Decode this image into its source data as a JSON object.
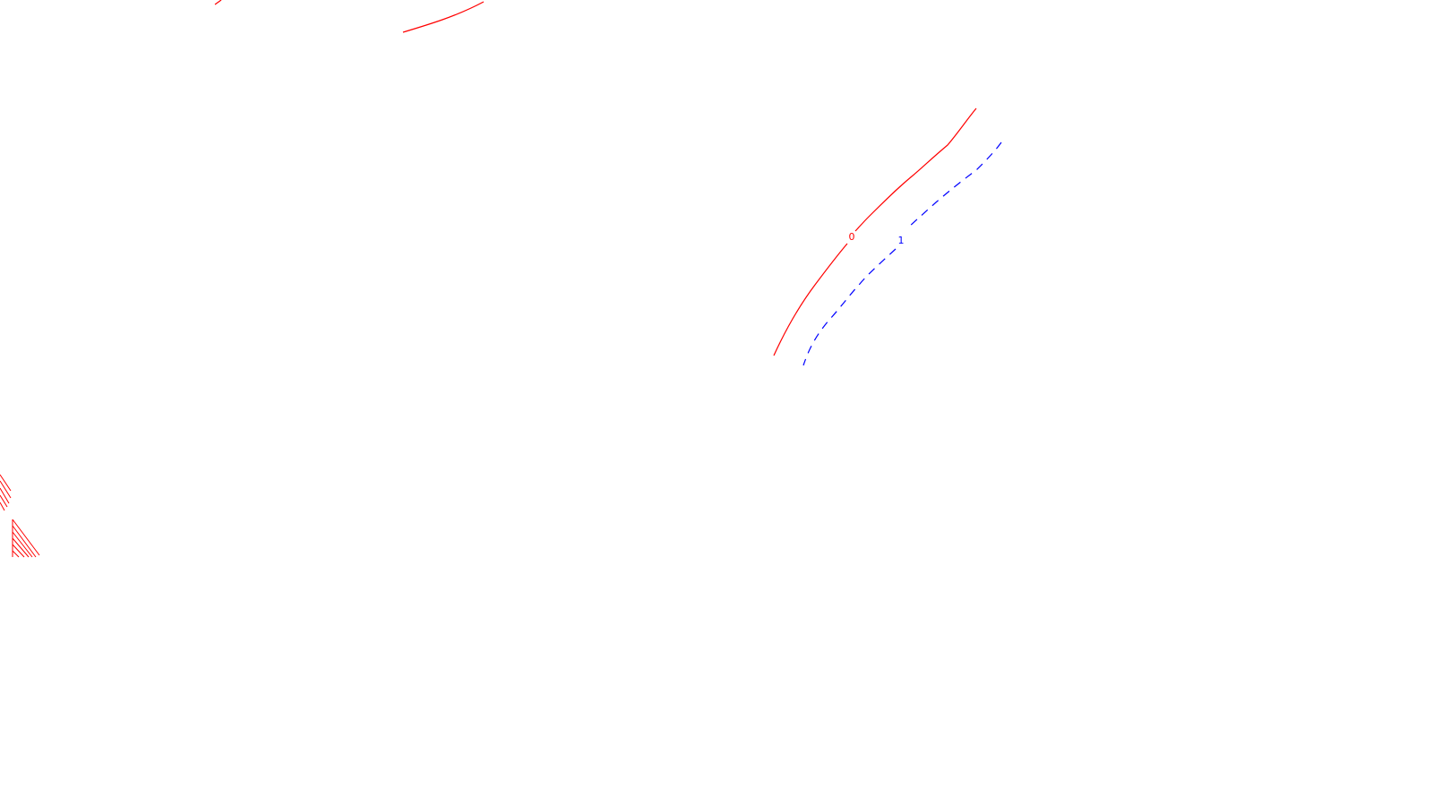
{
  "map": {
    "background": "#ffffff",
    "contours": [
      {
        "id": "contour-0",
        "label": "0",
        "color": "#ff0000",
        "style": "solid"
      },
      {
        "id": "contour-1",
        "label": "1",
        "color": "#0000ff",
        "style": "dashed"
      }
    ],
    "fragments": {
      "top_arc_color": "#ff0000",
      "hatch_color": "#ff0000"
    }
  }
}
